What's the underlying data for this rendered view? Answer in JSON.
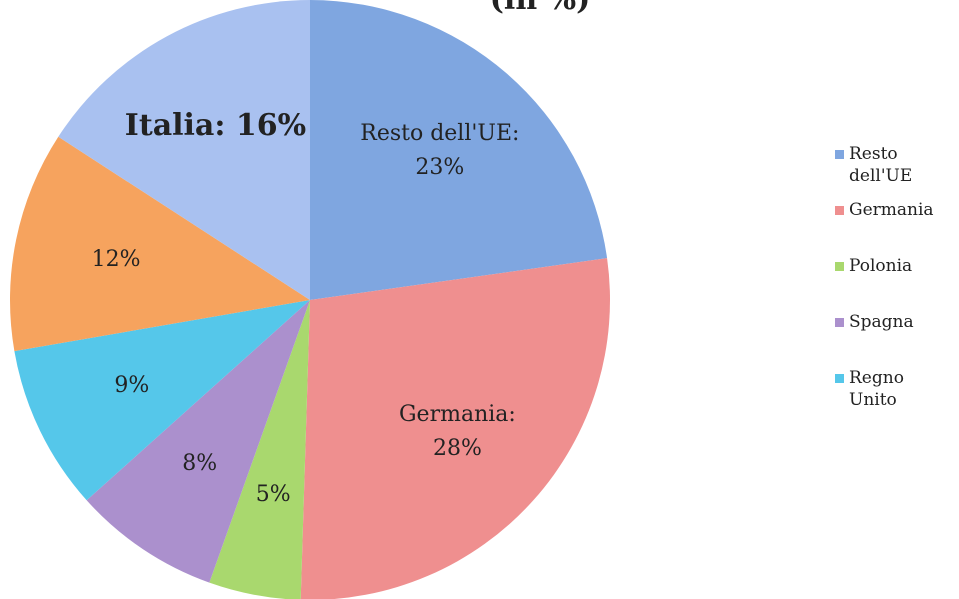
{
  "chart_data": {
    "type": "pie",
    "title": "(in %)",
    "categories": [
      "Resto dell'UE",
      "Germania",
      "Polonia",
      "Spagna",
      "Regno Unito",
      null,
      null
    ],
    "values": [
      23,
      28,
      5,
      8,
      9,
      12,
      16
    ],
    "value_labels": [
      "Resto dell'UE: 23%",
      "Germania: 28%",
      "5%",
      "8%",
      "9%",
      "12%",
      "Italia: 16%"
    ],
    "colors": [
      "#7fa6e0",
      "#ef8f8f",
      "#a9d86e",
      "#ab90cd",
      "#55c7ea",
      "#f6a35e",
      "#a9c1f0"
    ],
    "legend": "right"
  }
}
